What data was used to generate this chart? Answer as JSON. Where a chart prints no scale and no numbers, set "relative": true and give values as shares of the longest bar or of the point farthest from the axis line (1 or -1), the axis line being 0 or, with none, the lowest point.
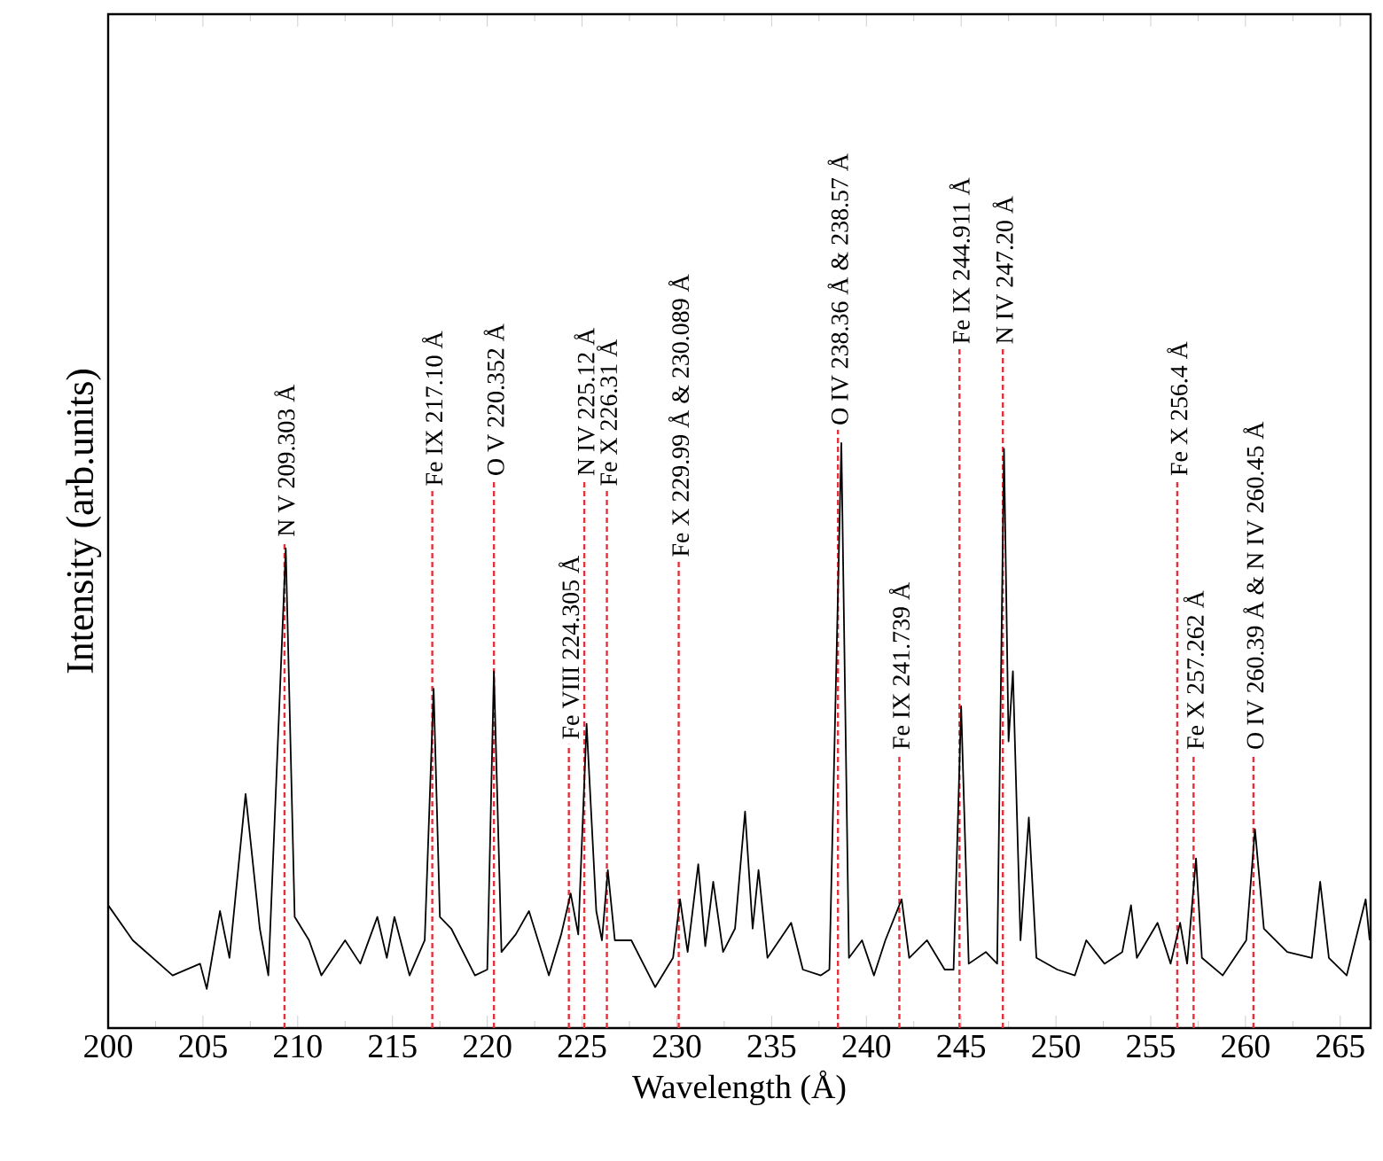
{
  "chart_data": {
    "type": "line",
    "relative": true,
    "xlabel": "Wavelength (Å)",
    "ylabel": "Intensity (arb.units)",
    "xlim": [
      200,
      266.6
    ],
    "xticks": [
      200,
      205,
      210,
      215,
      220,
      225,
      230,
      235,
      240,
      245,
      250,
      255,
      260,
      265
    ],
    "marker": "none",
    "line_style": "solid",
    "series": [
      {
        "color": "#000000",
        "x": [
          200.0,
          201.3,
          203.4,
          204.85,
          205.2,
          205.9,
          206.4,
          207.25,
          208.0,
          208.45,
          209.37,
          209.84,
          210.6,
          211.25,
          212.5,
          213.3,
          214.2,
          214.7,
          215.1,
          215.9,
          216.7,
          217.17,
          217.5,
          218.1,
          219.35,
          220.0,
          220.35,
          220.75,
          221.5,
          222.2,
          223.25,
          223.9,
          224.4,
          224.8,
          225.24,
          225.75,
          226.05,
          226.36,
          226.73,
          227.6,
          228.86,
          229.8,
          230.17,
          230.57,
          231.13,
          231.5,
          231.92,
          232.44,
          233.07,
          233.6,
          234.0,
          234.31,
          234.78,
          236.03,
          236.65,
          237.6,
          238.05,
          238.68,
          239.08,
          239.77,
          240.4,
          241.0,
          241.86,
          242.26,
          243.2,
          244.13,
          244.6,
          245.0,
          245.4,
          246.3,
          246.9,
          247.26,
          247.5,
          247.73,
          248.13,
          248.57,
          248.97,
          250.07,
          251.0,
          251.6,
          252.56,
          253.5,
          253.96,
          254.27,
          255.36,
          256.05,
          256.55,
          256.92,
          257.39,
          257.7,
          258.8,
          260.04,
          260.5,
          260.97,
          262.2,
          263.5,
          263.94,
          264.4,
          265.34,
          266.34,
          266.55
        ],
        "values": [
          0.21,
          0.15,
          0.09,
          0.11,
          0.067,
          0.2,
          0.12,
          0.4,
          0.17,
          0.09,
          0.82,
          0.19,
          0.15,
          0.09,
          0.15,
          0.11,
          0.19,
          0.12,
          0.19,
          0.09,
          0.15,
          0.58,
          0.19,
          0.17,
          0.09,
          0.1,
          0.61,
          0.13,
          0.16,
          0.2,
          0.09,
          0.16,
          0.23,
          0.16,
          0.52,
          0.2,
          0.15,
          0.27,
          0.15,
          0.15,
          0.07,
          0.12,
          0.22,
          0.13,
          0.28,
          0.14,
          0.25,
          0.13,
          0.17,
          0.37,
          0.17,
          0.27,
          0.12,
          0.18,
          0.1,
          0.09,
          0.1,
          1.0,
          0.12,
          0.15,
          0.09,
          0.15,
          0.22,
          0.12,
          0.15,
          0.1,
          0.1,
          0.55,
          0.11,
          0.13,
          0.11,
          0.99,
          0.49,
          0.61,
          0.15,
          0.36,
          0.12,
          0.1,
          0.09,
          0.15,
          0.11,
          0.13,
          0.21,
          0.12,
          0.18,
          0.11,
          0.18,
          0.11,
          0.29,
          0.12,
          0.09,
          0.15,
          0.34,
          0.17,
          0.13,
          0.12,
          0.25,
          0.12,
          0.09,
          0.22,
          0.15
        ]
      }
    ],
    "ref_lines": [
      {
        "axis": "x",
        "value": 209.303,
        "label": "N V 209.303 Å",
        "color": "#e8303a",
        "line_style": "dashed"
      },
      {
        "axis": "x",
        "value": 217.1,
        "label": "Fe IX 217.10 Å",
        "color": "#e8303a",
        "line_style": "dashed"
      },
      {
        "axis": "x",
        "value": 220.352,
        "label": "O V 220.352 Å",
        "color": "#e8303a",
        "line_style": "dashed"
      },
      {
        "axis": "x",
        "value": 224.305,
        "label": "Fe VIII 224.305 Å",
        "color": "#e8303a",
        "line_style": "dashed"
      },
      {
        "axis": "x",
        "value": 225.12,
        "label": "N IV 225.12 Å",
        "color": "#e8303a",
        "line_style": "dashed"
      },
      {
        "axis": "x",
        "value": 226.31,
        "label": "Fe X 226.31 Å",
        "color": "#e8303a",
        "line_style": "dashed"
      },
      {
        "axis": "x",
        "value": 230.1,
        "label": "Fe X 229.99 Å & 230.089 Å",
        "color": "#e8303a",
        "line_style": "dashed"
      },
      {
        "axis": "x",
        "value": 238.5,
        "label": "O IV 238.36 Å & 238.57 Å",
        "color": "#e8303a",
        "line_style": "dashed"
      },
      {
        "axis": "x",
        "value": 241.739,
        "label": "Fe IX 241.739 Å",
        "color": "#e8303a",
        "line_style": "dashed"
      },
      {
        "axis": "x",
        "value": 244.911,
        "label": "Fe IX 244.911 Å",
        "color": "#e8303a",
        "line_style": "dashed"
      },
      {
        "axis": "x",
        "value": 247.2,
        "label": "N IV 247.20 Å",
        "color": "#e8303a",
        "line_style": "dashed"
      },
      {
        "axis": "x",
        "value": 256.4,
        "label": "Fe X 256.4 Å",
        "color": "#e8303a",
        "line_style": "dashed"
      },
      {
        "axis": "x",
        "value": 257.262,
        "label": "Fe X 257.262 Å",
        "color": "#e8303a",
        "line_style": "dashed"
      },
      {
        "axis": "x",
        "value": 260.42,
        "label": "O IV 260.39 Å & N IV 260.45 Å",
        "color": "#e8303a",
        "line_style": "dashed"
      }
    ]
  }
}
